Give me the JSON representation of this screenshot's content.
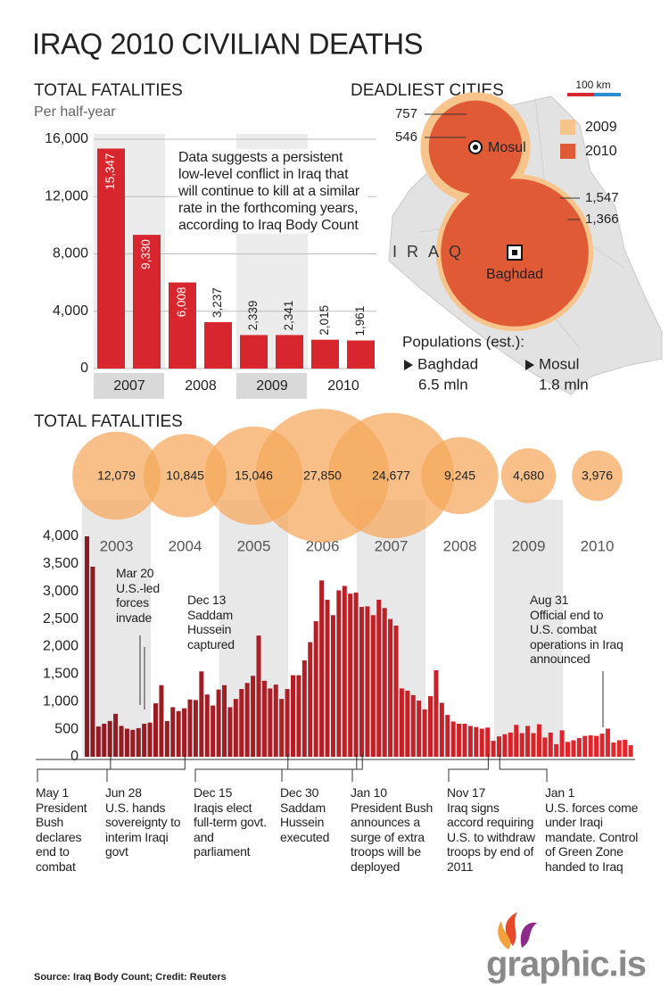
{
  "title": "IRAQ 2010 CIVILIAN DEATHS",
  "chart_data": [
    {
      "type": "bar",
      "title": "TOTAL FATALITIES",
      "subtitle": "Per half-year",
      "groups": [
        "2007",
        "2008",
        "2009",
        "2010"
      ],
      "values": [
        15347,
        9330,
        6008,
        3237,
        2339,
        2341,
        2015,
        1961
      ],
      "value_labels": [
        "15,347",
        "9,330",
        "6,008",
        "3,237",
        "2,339",
        "2,341",
        "2,015",
        "1,961"
      ],
      "color": "#d7262e",
      "ylim": [
        0,
        16000
      ],
      "yticks": [
        0,
        {
          "value": 4000,
          "label": "4,000"
        },
        {
          "value": 8000,
          "label": "8,000"
        },
        {
          "value": 12000,
          "label": "12,000"
        },
        {
          "value": 16000,
          "label": "16,000"
        }
      ],
      "grid": true,
      "annotation": "Data suggests a persistent low-level conflict in Iraq that will continue to kill at a similar rate in the forthcoming years, according to Iraq Body Count"
    },
    {
      "type": "bubble",
      "title": "DEADLIEST CITIES",
      "categories": [
        "Mosul",
        "Baghdad"
      ],
      "series": [
        {
          "name": "2009",
          "color": "#f7c48b",
          "values": [
            757,
            1547
          ],
          "value_labels": [
            "757",
            "1,547"
          ]
        },
        {
          "name": "2010",
          "color": "#e05a36",
          "values": [
            546,
            1366
          ],
          "value_labels": [
            "546",
            "1,366"
          ]
        }
      ],
      "scale_label": "100 km",
      "country_label": "IRAQ",
      "populations_title": "Populations (est.):",
      "population_labels": [
        "1.8 mln",
        "6.5 mln"
      ]
    },
    {
      "type": "bar",
      "title": "TOTAL FATALITIES",
      "groups": [
        "2003",
        "2004",
        "2005",
        "2006",
        "2007",
        "2008",
        "2009",
        "2010"
      ],
      "year_totals": [
        12079,
        10845,
        15046,
        27850,
        24677,
        9245,
        4680,
        3976
      ],
      "year_total_labels": [
        "12,079",
        "10,845",
        "15,046",
        "27,850",
        "24,677",
        "9,245",
        "4,680",
        "3,976"
      ],
      "bubble_color": "#f5a85a",
      "values": [
        4000,
        3450,
        550,
        600,
        650,
        780,
        560,
        510,
        490,
        520,
        600,
        620,
        970,
        1300,
        650,
        900,
        830,
        880,
        1040,
        1030,
        1550,
        1130,
        930,
        1220,
        1300,
        900,
        1050,
        1230,
        1340,
        1470,
        2200,
        1380,
        1240,
        1310,
        1050,
        1230,
        1480,
        1480,
        1750,
        2080,
        2460,
        3200,
        2850,
        2570,
        3020,
        3100,
        2960,
        2980,
        2720,
        2730,
        2570,
        2850,
        2700,
        2500,
        2380,
        1240,
        1200,
        1120,
        1020,
        860,
        1100,
        1570,
        980,
        760,
        640,
        600,
        600,
        560,
        540,
        510,
        530,
        290,
        370,
        410,
        440,
        580,
        430,
        560,
        430,
        590,
        350,
        440,
        230,
        480,
        270,
        300,
        340,
        380,
        390,
        380,
        420,
        510,
        260,
        300,
        310,
        210
      ],
      "color_range": [
        "#8e1b22",
        "#e7262d"
      ],
      "ylim": [
        0,
        4000
      ],
      "yticks": [
        0,
        500,
        {
          "value": 1000,
          "label": "1,000"
        },
        {
          "value": 1500,
          "label": "1,500"
        },
        {
          "value": 2000,
          "label": "2,000"
        },
        {
          "value": 2500,
          "label": "2,500"
        },
        {
          "value": 3000,
          "label": "3,000"
        },
        {
          "value": 3500,
          "label": "3,500"
        },
        {
          "value": 4000,
          "label": "4,000"
        }
      ],
      "grid": false,
      "events_above": [
        {
          "date": "Mar 20",
          "text": "U.S.-led forces invade"
        },
        {
          "date": "Dec 13",
          "text": "Saddam Hussein captured"
        },
        {
          "date": "Aug 31",
          "text": "Official end to U.S. combat operations in Iraq announced"
        }
      ],
      "events_below": [
        {
          "date": "May 1",
          "text": "President Bush declares end to combat"
        },
        {
          "date": "Jun 28",
          "text": "U.S. hands sovereignty to interim Iraqi govt"
        },
        {
          "date": "Dec 15",
          "text": "Iraqis elect full-term govt. and parliament"
        },
        {
          "date": "Dec 30",
          "text": "Saddam Hussein executed"
        },
        {
          "date": "Jan 10",
          "text": "President Bush announces a surge of extra troops will be deployed"
        },
        {
          "date": "Nov 17",
          "text": "Iraq signs accord requiring U.S. to withdraw troops by end of 2011"
        },
        {
          "date": "Jan 1",
          "text": "U.S. forces come under Iraqi mandate. Control of Green Zone handed to Iraq"
        }
      ]
    }
  ],
  "source": "Source: Iraq Body Count; Credit: Reuters",
  "logo": "graphic.is"
}
